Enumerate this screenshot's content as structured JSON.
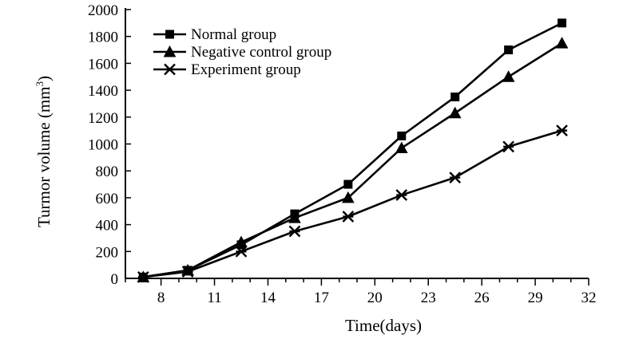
{
  "chart_data": {
    "type": "line",
    "title": "",
    "xlabel": "Time(days)",
    "ylabel_main": "Turmor volume (mm",
    "ylabel_sup": "3",
    "ylabel_close": ")",
    "xlim": [
      6,
      32
    ],
    "ylim": [
      0,
      2000
    ],
    "xticks": [
      8,
      11,
      14,
      17,
      20,
      23,
      26,
      29,
      32
    ],
    "yticks": [
      0,
      200,
      400,
      600,
      800,
      1000,
      1200,
      1400,
      1600,
      1800,
      2000
    ],
    "x": [
      7,
      9.5,
      12.5,
      15.5,
      18.5,
      21.5,
      24.5,
      27.5,
      30.5
    ],
    "legend_position": "top-left",
    "series": [
      {
        "name": "Normal group",
        "marker": "square",
        "values": [
          10,
          60,
          250,
          480,
          700,
          1060,
          1350,
          1700,
          1900
        ]
      },
      {
        "name": "Negative control group",
        "marker": "triangle",
        "values": [
          10,
          60,
          270,
          450,
          600,
          970,
          1230,
          1500,
          1750
        ]
      },
      {
        "name": "Experiment group",
        "marker": "star",
        "values": [
          10,
          50,
          200,
          350,
          460,
          620,
          750,
          980,
          1100
        ]
      }
    ]
  }
}
